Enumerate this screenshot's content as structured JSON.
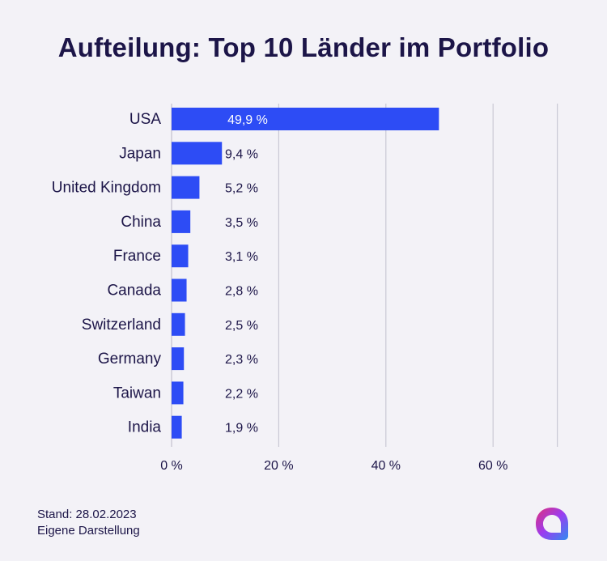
{
  "title": "Aufteilung: Top 10 Länder im Portfolio",
  "chart_data": {
    "type": "bar",
    "orientation": "horizontal",
    "title": "Aufteilung: Top 10 Länder im Portfolio",
    "categories": [
      "USA",
      "Japan",
      "United Kingdom",
      "China",
      "France",
      "Canada",
      "Switzerland",
      "Germany",
      "Taiwan",
      "India"
    ],
    "values": [
      49.9,
      9.4,
      5.2,
      3.5,
      3.1,
      2.8,
      2.5,
      2.3,
      2.2,
      1.9
    ],
    "value_labels": [
      "49,9 %",
      "9,4 %",
      "5,2 %",
      "3,5 %",
      "3,1 %",
      "2,8 %",
      "2,5 %",
      "2,3 %",
      "2,2 %",
      "1,9 %"
    ],
    "xlim": [
      0,
      72
    ],
    "xticks": [
      0,
      20,
      40,
      60
    ],
    "xtick_labels": [
      "0 %",
      "20 %",
      "40 %",
      "60 %"
    ],
    "grid": true,
    "xlabel": "",
    "ylabel": ""
  },
  "colors": {
    "bar": "#2d4cf5",
    "grid": "#c9c8d4",
    "text": "#1c1548",
    "label_on_bar": "#ffffff"
  },
  "footer": {
    "line1": "Stand: 28.02.2023",
    "line2": "Eigene Darstellung"
  },
  "logo": {
    "icon": "brand-logo-icon"
  }
}
